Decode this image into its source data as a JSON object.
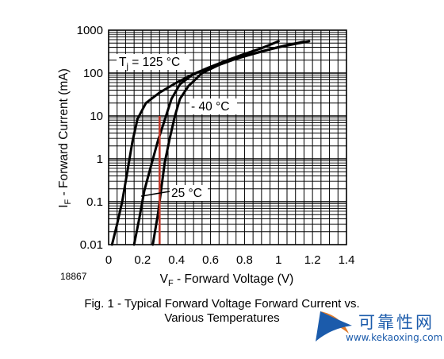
{
  "chart_data": {
    "type": "line",
    "y_scale": "log",
    "xlim": [
      0,
      1.4
    ],
    "ylim": [
      0.01,
      1000
    ],
    "x_ticks": [
      "0",
      "0.2",
      "0.4",
      "0.6",
      "0.8",
      "1",
      "1.2",
      "1.4"
    ],
    "y_ticks": [
      "1000",
      "100",
      "10",
      "1",
      "0.1",
      "0.01"
    ],
    "x_tick_values": [
      0,
      0.2,
      0.4,
      0.6,
      0.8,
      1.0,
      1.2,
      1.4
    ],
    "y_tick_values": [
      1000,
      100,
      10,
      1,
      0.1,
      0.01
    ],
    "xlabel_main": "V",
    "xlabel_sub": "F",
    "xlabel_rest": " - Forward Voltage (V)",
    "ylabel_main": "I",
    "ylabel_sub": "F",
    "ylabel_rest": " - Forward Current (mA)",
    "grid": true,
    "figure_number": "18867",
    "caption_line1": "Fig. 1 - Typical Forward Voltage Forward Current vs.",
    "caption_line2": "Various Temperatures",
    "series": [
      {
        "name_main": "T",
        "name_sub": "j",
        "name_rest": " = 125 °C",
        "points": [
          [
            0.02,
            0.01
          ],
          [
            0.05,
            0.03
          ],
          [
            0.08,
            0.1
          ],
          [
            0.11,
            0.5
          ],
          [
            0.14,
            2.5
          ],
          [
            0.17,
            8.5
          ],
          [
            0.22,
            20
          ],
          [
            0.3,
            35
          ],
          [
            0.4,
            60
          ],
          [
            0.5,
            95
          ],
          [
            0.6,
            140
          ],
          [
            0.7,
            200
          ],
          [
            0.8,
            280
          ],
          [
            0.9,
            380
          ],
          [
            1.0,
            550
          ]
        ]
      },
      {
        "name_main": "",
        "name_sub": "",
        "name_rest": "25 °C",
        "points": [
          [
            0.15,
            0.01
          ],
          [
            0.18,
            0.04
          ],
          [
            0.21,
            0.18
          ],
          [
            0.25,
            0.7
          ],
          [
            0.29,
            2.6
          ],
          [
            0.33,
            8
          ],
          [
            0.37,
            25
          ],
          [
            0.42,
            55
          ],
          [
            0.5,
            95
          ],
          [
            0.6,
            140
          ],
          [
            0.7,
            190
          ],
          [
            0.8,
            250
          ],
          [
            0.9,
            320
          ],
          [
            1.0,
            400
          ],
          [
            1.1,
            480
          ],
          [
            1.18,
            550
          ]
        ]
      },
      {
        "name_main": "",
        "name_sub": "",
        "name_rest": "- 40 °C",
        "points": [
          [
            0.26,
            0.01
          ],
          [
            0.29,
            0.05
          ],
          [
            0.31,
            0.2
          ],
          [
            0.33,
            0.8
          ],
          [
            0.36,
            3
          ],
          [
            0.39,
            10
          ],
          [
            0.42,
            25
          ],
          [
            0.47,
            50
          ],
          [
            0.55,
            100
          ],
          [
            0.65,
            155
          ],
          [
            0.75,
            215
          ],
          [
            0.85,
            280
          ],
          [
            0.95,
            360
          ],
          [
            1.05,
            450
          ],
          [
            1.15,
            540
          ]
        ]
      }
    ],
    "markers": [
      {
        "color": "#c0392b",
        "x": 0.3,
        "y_from": 0.01,
        "y_to": 10
      }
    ]
  },
  "watermark": {
    "title": "可靠性网",
    "domain": "www.kekaoxing.com",
    "colors": {
      "primary": "#1b5bab",
      "accent": "#e07a2a"
    }
  },
  "colors": {
    "curve": "#000000",
    "grid": "#000000",
    "background": "#ffffff"
  }
}
